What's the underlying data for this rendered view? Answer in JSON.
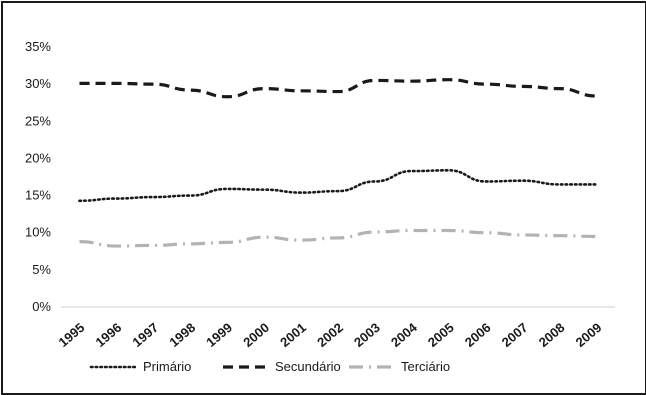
{
  "chart_data": {
    "type": "line",
    "x": [
      "1995",
      "1996",
      "1997",
      "1998",
      "1999",
      "2000",
      "2001",
      "2002",
      "2003",
      "2004",
      "2005",
      "2006",
      "2007",
      "2008",
      "2009"
    ],
    "ylim": [
      0,
      35
    ],
    "yticks": [
      "0%",
      "5%",
      "10%",
      "15%",
      "20%",
      "25%",
      "30%",
      "35%"
    ],
    "grid": false,
    "legend_position": "bottom",
    "series": [
      {
        "name": "Primário",
        "style": "dotted",
        "color": "#1a1a1a",
        "values": [
          14.3,
          14.6,
          14.8,
          15.0,
          15.9,
          15.8,
          15.4,
          15.6,
          16.9,
          18.3,
          18.4,
          16.9,
          17.0,
          16.5,
          16.5
        ]
      },
      {
        "name": "Secundário",
        "style": "dashed",
        "color": "#1a1a1a",
        "values": [
          30.1,
          30.1,
          30.0,
          29.2,
          28.3,
          29.4,
          29.1,
          29.0,
          30.5,
          30.4,
          30.6,
          30.0,
          29.7,
          29.4,
          28.4
        ]
      },
      {
        "name": "Terciário",
        "style": "dashdot",
        "color": "#b3b3b3",
        "values": [
          8.8,
          8.2,
          8.3,
          8.5,
          8.7,
          9.4,
          9.0,
          9.3,
          10.1,
          10.3,
          10.3,
          10.0,
          9.7,
          9.6,
          9.5
        ]
      }
    ]
  }
}
